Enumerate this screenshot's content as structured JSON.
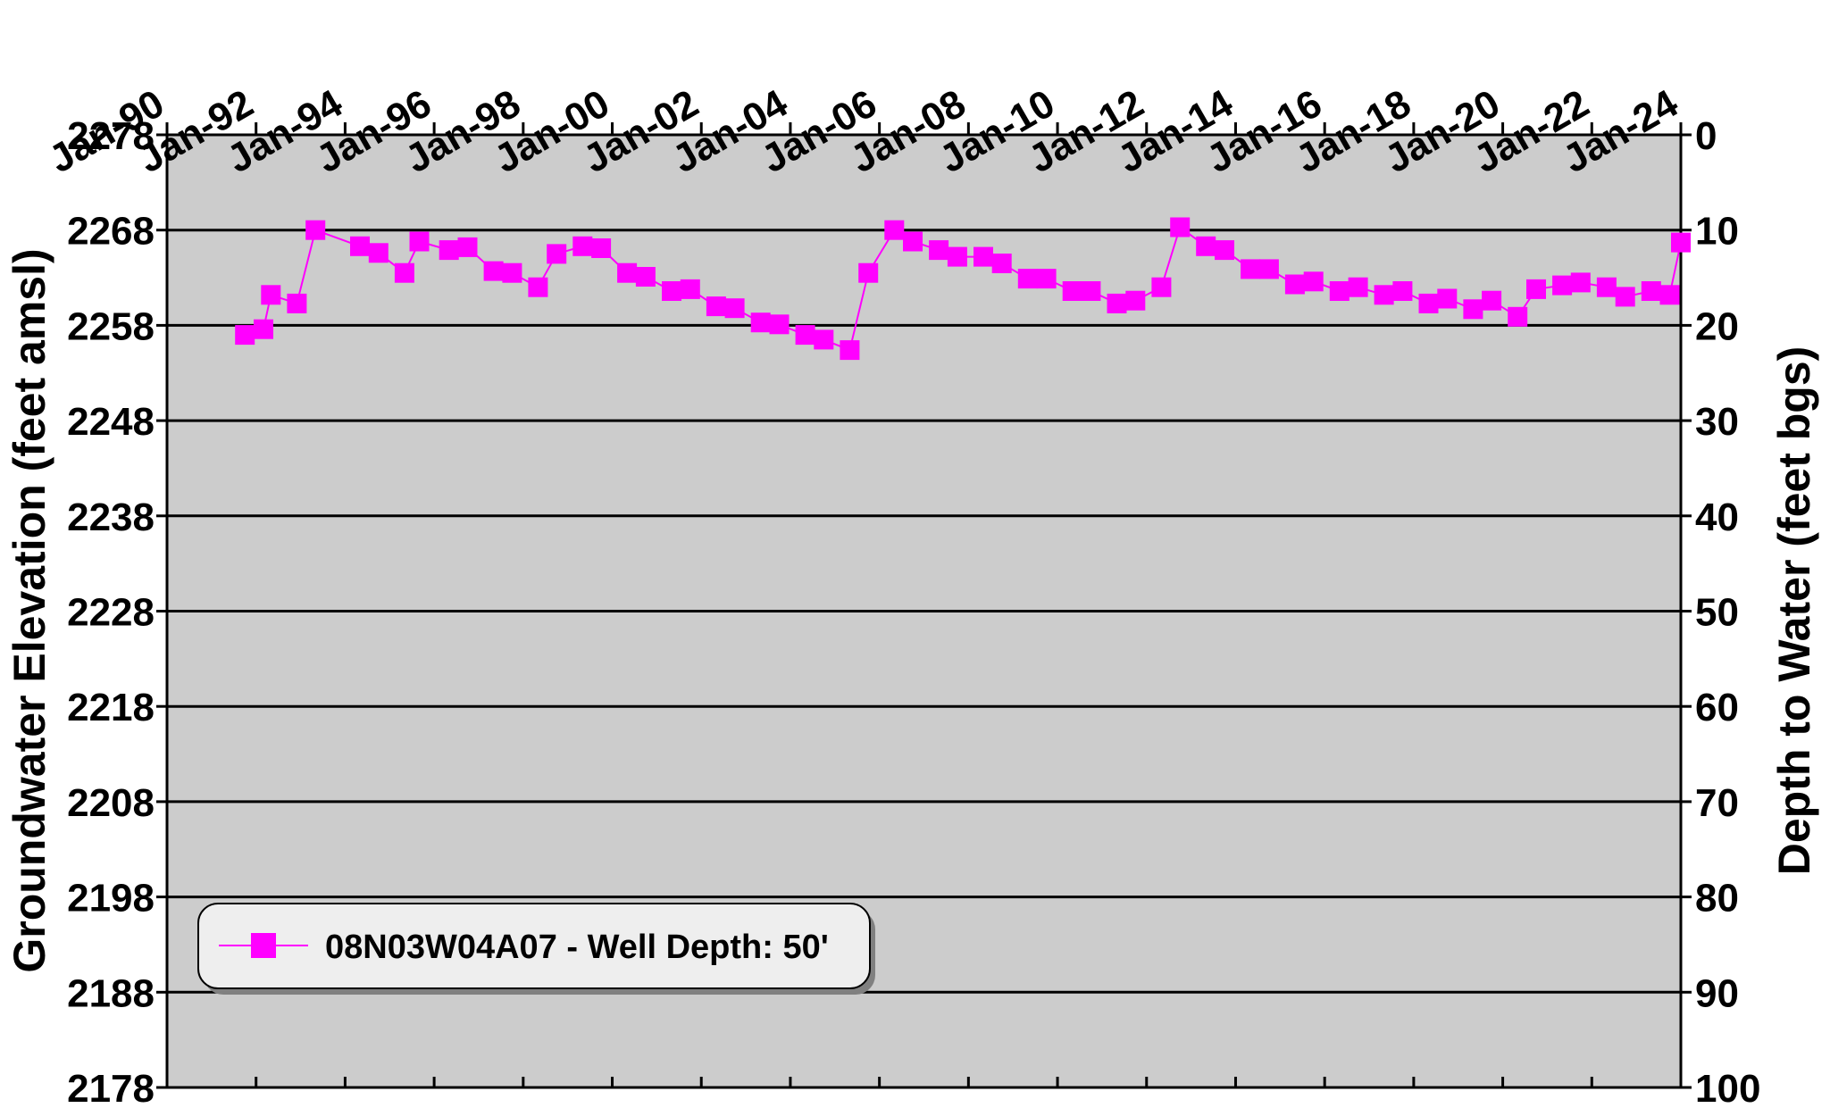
{
  "chart_data": {
    "type": "line",
    "x_axis": {
      "position": "top",
      "tick_labels": [
        "Jan-90",
        "Jan-92",
        "Jan-94",
        "Jan-96",
        "Jan-98",
        "Jan-00",
        "Jan-02",
        "Jan-04",
        "Jan-06",
        "Jan-08",
        "Jan-10",
        "Jan-12",
        "Jan-14",
        "Jan-16",
        "Jan-18",
        "Jan-20",
        "Jan-22",
        "Jan-24"
      ],
      "range": [
        "1990-01",
        "2024-01"
      ]
    },
    "y_left": {
      "label": "Groundwater Elevation (feet amsl)",
      "range": [
        2178,
        2278
      ],
      "tick_labels": [
        "2278",
        "2268",
        "2258",
        "2248",
        "2238",
        "2228",
        "2218",
        "2208",
        "2198",
        "2188",
        "2178"
      ]
    },
    "y_right": {
      "label": "Depth to Water (feet bgs)",
      "range": [
        0,
        100
      ],
      "inverted": true,
      "tick_labels": [
        "0",
        "10",
        "20",
        "30",
        "40",
        "50",
        "60",
        "70",
        "80",
        "90",
        "100"
      ]
    },
    "grid": "horizontal",
    "background": "#cccccc",
    "legend": {
      "placement": "bottom-left"
    },
    "series": [
      {
        "name": "08N03W04A07 - Well Depth: 50'",
        "color": "#ff00ff",
        "marker": "square",
        "points": [
          [
            "1991-10",
            2257.0
          ],
          [
            "1992-03",
            2257.6
          ],
          [
            "1992-05",
            2261.2
          ],
          [
            "1992-12",
            2260.3
          ],
          [
            "1993-05",
            2268.0
          ],
          [
            "1994-05",
            2266.3
          ],
          [
            "1994-10",
            2265.6
          ],
          [
            "1995-05",
            2263.5
          ],
          [
            "1995-09",
            2266.8
          ],
          [
            "1996-05",
            2265.9
          ],
          [
            "1996-10",
            2266.2
          ],
          [
            "1997-05",
            2263.7
          ],
          [
            "1997-10",
            2263.5
          ],
          [
            "1998-05",
            2262.0
          ],
          [
            "1998-10",
            2265.5
          ],
          [
            "1999-05",
            2266.3
          ],
          [
            "1999-10",
            2266.1
          ],
          [
            "2000-05",
            2263.5
          ],
          [
            "2000-10",
            2263.1
          ],
          [
            "2001-05",
            2261.6
          ],
          [
            "2001-10",
            2261.8
          ],
          [
            "2002-05",
            2260.0
          ],
          [
            "2002-10",
            2259.8
          ],
          [
            "2003-05",
            2258.3
          ],
          [
            "2003-10",
            2258.1
          ],
          [
            "2004-05",
            2257.0
          ],
          [
            "2004-10",
            2256.5
          ],
          [
            "2005-05",
            2255.4
          ],
          [
            "2005-10",
            2263.5
          ],
          [
            "2006-05",
            2268.0
          ],
          [
            "2006-10",
            2266.8
          ],
          [
            "2007-05",
            2265.9
          ],
          [
            "2007-10",
            2265.2
          ],
          [
            "2008-05",
            2265.2
          ],
          [
            "2008-10",
            2264.5
          ],
          [
            "2009-05",
            2262.9
          ],
          [
            "2009-10",
            2262.9
          ],
          [
            "2010-05",
            2261.6
          ],
          [
            "2010-10",
            2261.6
          ],
          [
            "2011-05",
            2260.3
          ],
          [
            "2011-10",
            2260.6
          ],
          [
            "2012-05",
            2262.0
          ],
          [
            "2012-10",
            2268.3
          ],
          [
            "2013-05",
            2266.3
          ],
          [
            "2013-10",
            2265.9
          ],
          [
            "2014-05",
            2263.9
          ],
          [
            "2014-10",
            2263.9
          ],
          [
            "2015-05",
            2262.3
          ],
          [
            "2015-10",
            2262.6
          ],
          [
            "2016-05",
            2261.6
          ],
          [
            "2016-10",
            2262.0
          ],
          [
            "2017-05",
            2261.2
          ],
          [
            "2017-10",
            2261.6
          ],
          [
            "2018-05",
            2260.3
          ],
          [
            "2018-10",
            2260.8
          ],
          [
            "2019-05",
            2259.7
          ],
          [
            "2019-10",
            2260.6
          ],
          [
            "2020-05",
            2258.9
          ],
          [
            "2020-10",
            2261.8
          ],
          [
            "2021-05",
            2262.2
          ],
          [
            "2021-10",
            2262.5
          ],
          [
            "2022-05",
            2262.0
          ],
          [
            "2022-10",
            2261.0
          ],
          [
            "2023-05",
            2261.6
          ],
          [
            "2023-10",
            2261.2
          ],
          [
            "2024-01",
            2266.7
          ]
        ]
      }
    ]
  }
}
